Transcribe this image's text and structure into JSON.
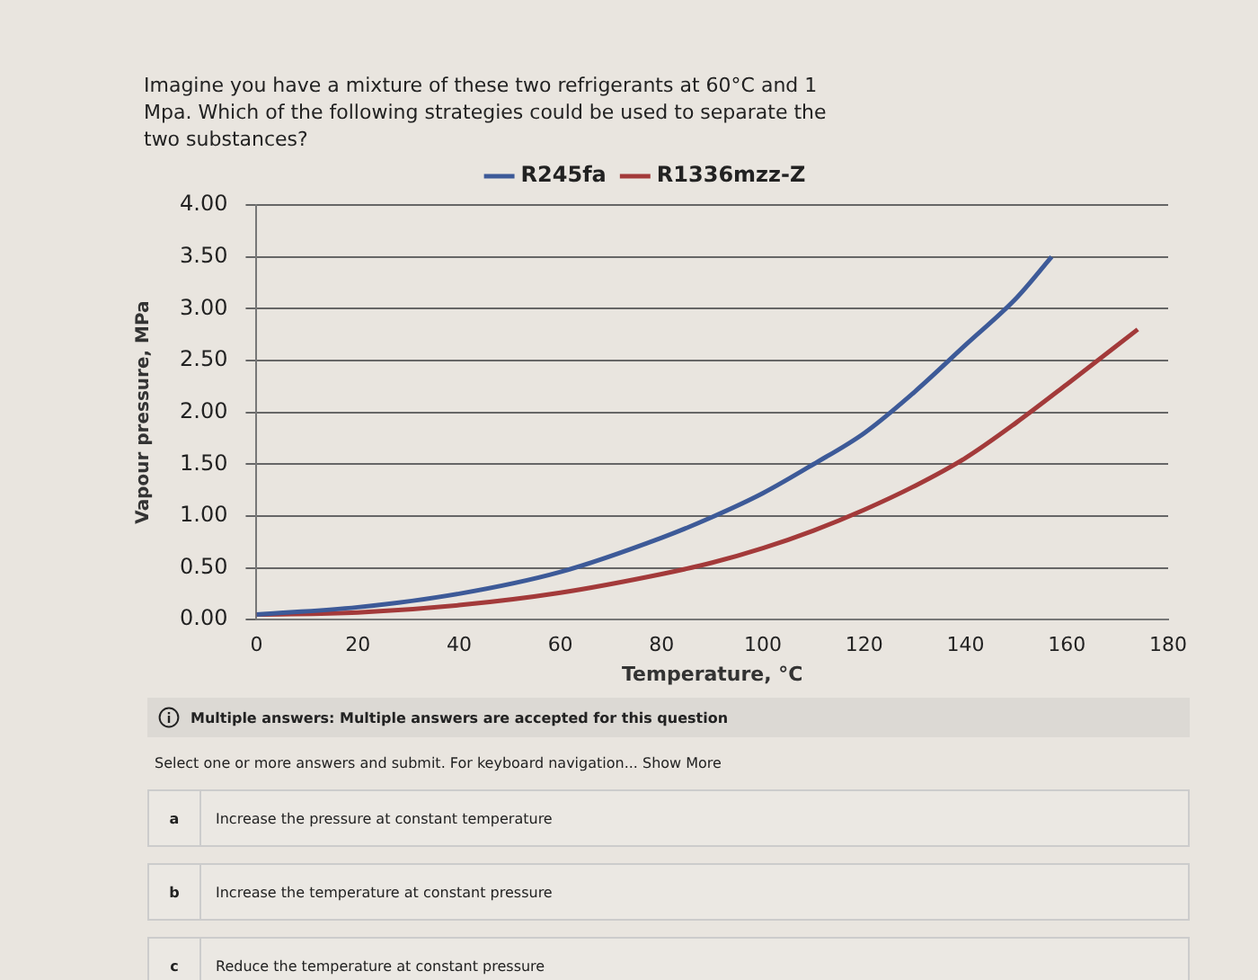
{
  "chart_data": {
    "type": "line",
    "title": "Imagine you have a mixture of these two refrigerants at 60°C and 1 Mpa. Which of the following strategies could be used to separate the two substances?",
    "xlabel": "Temperature, °C",
    "ylabel": "Vapour pressure, MPa",
    "series": [
      {
        "name": "R245fa",
        "color": "#3d5a98",
        "x": [
          0,
          20,
          40,
          60,
          80,
          90,
          100,
          110,
          120,
          130,
          140,
          150,
          157
        ],
        "values": [
          0.05,
          0.12,
          0.25,
          0.46,
          0.79,
          0.99,
          1.22,
          1.5,
          1.8,
          2.2,
          2.65,
          3.1,
          3.5
        ]
      },
      {
        "name": "R1336mzz-Z",
        "color": "#a33a3a",
        "x": [
          0,
          20,
          40,
          60,
          80,
          90,
          100,
          110,
          120,
          130,
          140,
          150,
          160,
          174
        ],
        "values": [
          0.05,
          0.07,
          0.14,
          0.26,
          0.44,
          0.55,
          0.69,
          0.86,
          1.06,
          1.29,
          1.56,
          1.9,
          2.27,
          2.8
        ]
      }
    ],
    "xlim": [
      0,
      180
    ],
    "xticks": [
      0,
      20,
      40,
      60,
      80,
      100,
      120,
      140,
      160,
      180
    ],
    "ylim": [
      0,
      4
    ],
    "yticks": [
      {
        "value": 0,
        "label": "0.00"
      },
      {
        "value": 0.5,
        "label": "0.50"
      },
      {
        "value": 1,
        "label": "1.00"
      },
      {
        "value": 1.5,
        "label": "1.50"
      },
      {
        "value": 2,
        "label": "2.00"
      },
      {
        "value": 2.5,
        "label": "2.50"
      },
      {
        "value": 3,
        "label": "3.00"
      },
      {
        "value": 3.5,
        "label": "3.50"
      },
      {
        "value": 4,
        "label": "4.00"
      }
    ],
    "grid": "y",
    "legend": "top",
    "marker": "none",
    "line_style": "solid",
    "annotations": [
      "Multiple answers: Multiple answers are accepted for this question",
      "Select one or more answers and submit. For keyboard navigation... Show More",
      "a",
      "Increase the pressure at constant temperature",
      "b",
      "Increase the temperature at constant pressure",
      "c",
      "Reduce the temperature at constant pressure"
    ]
  }
}
